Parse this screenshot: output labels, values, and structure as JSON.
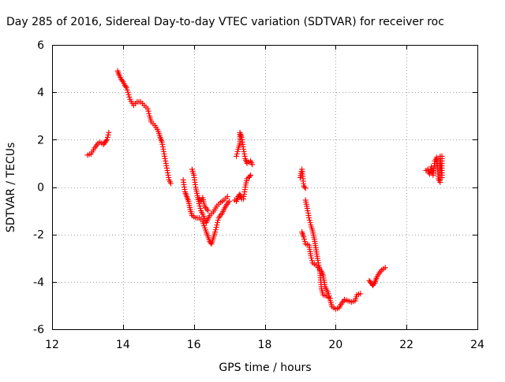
{
  "chart_data": {
    "type": "scatter",
    "title": "Day 285 of 2016, Sidereal Day-to-day VTEC variation (SDTVAR) for receiver roc",
    "xlabel": "GPS time / hours",
    "ylabel": "SDTVAR / TECUs",
    "xlim": [
      12,
      24
    ],
    "ylim": [
      -6,
      6
    ],
    "x_ticks": [
      "12",
      "14",
      "16",
      "18",
      "20",
      "22",
      "24"
    ],
    "y_ticks": [
      "-6",
      "-4",
      "-2",
      "0",
      "2",
      "4",
      "6"
    ],
    "grid": true,
    "marker": "plus",
    "colors": {
      "series": "#ff0000",
      "grid": "#a0a0a0",
      "axis": "#000000"
    },
    "series": [
      {
        "segments": [
          [
            [
              13.0,
              1.35
            ],
            [
              13.1,
              1.4
            ],
            [
              13.2,
              1.65
            ],
            [
              13.3,
              1.85
            ],
            [
              13.35,
              1.9
            ],
            [
              13.45,
              1.8
            ],
            [
              13.5,
              1.9
            ],
            [
              13.55,
              2.0
            ],
            [
              13.6,
              2.3
            ]
          ],
          [
            [
              13.85,
              4.9
            ],
            [
              13.9,
              4.7
            ],
            [
              13.95,
              4.55
            ],
            [
              14.0,
              4.45
            ],
            [
              14.05,
              4.3
            ],
            [
              14.1,
              4.2
            ],
            [
              14.2,
              3.7
            ],
            [
              14.3,
              3.45
            ],
            [
              14.4,
              3.6
            ],
            [
              14.5,
              3.6
            ],
            [
              14.6,
              3.45
            ],
            [
              14.7,
              3.3
            ],
            [
              14.75,
              3.0
            ],
            [
              14.8,
              2.75
            ],
            [
              14.9,
              2.6
            ],
            [
              15.0,
              2.35
            ],
            [
              15.05,
              2.1
            ],
            [
              15.1,
              1.9
            ],
            [
              15.15,
              1.5
            ],
            [
              15.2,
              1.1
            ],
            [
              15.25,
              0.7
            ],
            [
              15.3,
              0.3
            ],
            [
              15.35,
              0.15
            ]
          ],
          [
            [
              15.7,
              0.3
            ],
            [
              15.75,
              -0.2
            ],
            [
              15.8,
              -0.4
            ],
            [
              15.85,
              -0.6
            ],
            [
              15.9,
              -0.95
            ],
            [
              15.95,
              -1.2
            ],
            [
              16.05,
              -1.3
            ],
            [
              16.15,
              -1.3
            ],
            [
              16.25,
              -1.45
            ],
            [
              16.35,
              -1.9
            ],
            [
              16.45,
              -2.3
            ],
            [
              16.5,
              -2.4
            ],
            [
              16.55,
              -2.15
            ],
            [
              16.6,
              -1.9
            ],
            [
              16.65,
              -1.6
            ],
            [
              16.7,
              -1.3
            ],
            [
              16.8,
              -1.1
            ],
            [
              16.9,
              -0.8
            ],
            [
              17.0,
              -0.6
            ]
          ],
          [
            [
              15.95,
              0.75
            ],
            [
              16.0,
              0.5
            ],
            [
              16.05,
              0.0
            ],
            [
              16.1,
              -0.35
            ],
            [
              16.15,
              -0.7
            ],
            [
              16.2,
              -1.0
            ],
            [
              16.25,
              -1.15
            ],
            [
              16.35,
              -1.5
            ],
            [
              16.45,
              -1.2
            ],
            [
              16.55,
              -1.05
            ],
            [
              16.65,
              -0.8
            ],
            [
              16.75,
              -0.65
            ],
            [
              16.85,
              -0.55
            ],
            [
              16.95,
              -0.4
            ]
          ],
          [
            [
              16.15,
              -0.5
            ],
            [
              16.2,
              -0.6
            ],
            [
              16.25,
              -0.45
            ],
            [
              16.3,
              -0.8
            ],
            [
              16.4,
              -1.0
            ]
          ],
          [
            [
              17.15,
              -0.55
            ],
            [
              17.2,
              -0.6
            ],
            [
              17.25,
              -0.4
            ],
            [
              17.3,
              -0.3
            ],
            [
              17.35,
              -0.5
            ],
            [
              17.4,
              -0.5
            ],
            [
              17.45,
              0.0
            ],
            [
              17.5,
              0.35
            ],
            [
              17.55,
              0.4
            ],
            [
              17.6,
              0.5
            ]
          ],
          [
            [
              17.2,
              1.3
            ],
            [
              17.25,
              1.6
            ],
            [
              17.3,
              1.85
            ],
            [
              17.3,
              2.3
            ],
            [
              17.35,
              2.1
            ],
            [
              17.4,
              1.6
            ],
            [
              17.45,
              1.2
            ],
            [
              17.5,
              1.0
            ],
            [
              17.55,
              1.05
            ],
            [
              17.6,
              1.1
            ],
            [
              17.65,
              0.95
            ]
          ],
          [
            [
              19.0,
              0.4
            ],
            [
              19.05,
              0.75
            ],
            [
              19.1,
              0.05
            ],
            [
              19.15,
              -0.05
            ]
          ],
          [
            [
              19.05,
              -1.9
            ],
            [
              19.1,
              -2.1
            ],
            [
              19.15,
              -2.4
            ],
            [
              19.25,
              -2.45
            ],
            [
              19.3,
              -2.9
            ],
            [
              19.35,
              -3.2
            ],
            [
              19.45,
              -3.3
            ],
            [
              19.55,
              -3.45
            ],
            [
              19.6,
              -4.3
            ],
            [
              19.65,
              -4.55
            ],
            [
              19.75,
              -4.6
            ],
            [
              19.85,
              -4.7
            ]
          ],
          [
            [
              19.15,
              -0.55
            ],
            [
              19.2,
              -0.9
            ],
            [
              19.25,
              -1.3
            ],
            [
              19.3,
              -1.6
            ],
            [
              19.35,
              -1.85
            ],
            [
              19.4,
              -2.2
            ],
            [
              19.45,
              -2.65
            ],
            [
              19.5,
              -3.1
            ],
            [
              19.55,
              -3.5
            ],
            [
              19.6,
              -3.55
            ],
            [
              19.65,
              -3.75
            ],
            [
              19.7,
              -4.2
            ],
            [
              19.8,
              -4.5
            ],
            [
              19.85,
              -4.8
            ],
            [
              19.9,
              -5.05
            ],
            [
              20.0,
              -5.15
            ],
            [
              20.1,
              -5.1
            ],
            [
              20.15,
              -4.95
            ],
            [
              20.25,
              -4.75
            ],
            [
              20.35,
              -4.8
            ],
            [
              20.45,
              -4.85
            ],
            [
              20.55,
              -4.8
            ],
            [
              20.6,
              -4.55
            ],
            [
              20.7,
              -4.5
            ]
          ],
          [
            [
              20.95,
              -3.95
            ],
            [
              21.0,
              -4.05
            ],
            [
              21.05,
              -4.15
            ],
            [
              21.1,
              -4.05
            ],
            [
              21.15,
              -3.85
            ],
            [
              21.2,
              -3.7
            ],
            [
              21.3,
              -3.5
            ],
            [
              21.35,
              -3.45
            ],
            [
              21.4,
              -3.4
            ]
          ],
          [
            [
              22.55,
              0.7
            ],
            [
              22.6,
              0.75
            ],
            [
              22.65,
              0.55
            ],
            [
              22.7,
              0.85
            ],
            [
              22.75,
              0.5
            ],
            [
              22.8,
              1.1
            ],
            [
              22.85,
              1.25
            ],
            [
              22.9,
              0.35
            ],
            [
              22.95,
              0.2
            ],
            [
              22.95,
              1.3
            ],
            [
              23.0,
              0.4
            ],
            [
              23.0,
              1.3
            ]
          ]
        ]
      }
    ]
  }
}
